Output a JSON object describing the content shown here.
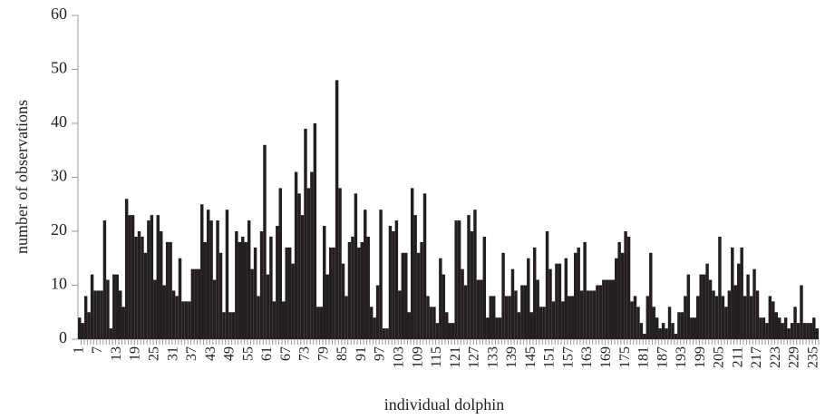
{
  "chart_data": {
    "type": "bar",
    "x_label": "individual dolphin",
    "y_label": "number of observations",
    "categories": [
      "1",
      null,
      null,
      null,
      null,
      null,
      "7",
      null,
      null,
      null,
      null,
      null,
      "13",
      null,
      null,
      null,
      null,
      null,
      "19",
      null,
      null,
      null,
      null,
      null,
      "25",
      null,
      null,
      null,
      null,
      null,
      "31",
      null,
      null,
      null,
      null,
      null,
      "37",
      null,
      null,
      null,
      null,
      null,
      "43",
      null,
      null,
      null,
      null,
      null,
      "49",
      null,
      null,
      null,
      null,
      null,
      "55",
      null,
      null,
      null,
      null,
      null,
      "61",
      null,
      null,
      null,
      null,
      null,
      "67",
      null,
      null,
      null,
      null,
      null,
      "73",
      null,
      null,
      null,
      null,
      null,
      "79",
      null,
      null,
      null,
      null,
      null,
      "85",
      null,
      null,
      null,
      null,
      null,
      "91",
      null,
      null,
      null,
      null,
      null,
      "97",
      null,
      null,
      null,
      null,
      null,
      "103",
      null,
      null,
      null,
      null,
      null,
      "109",
      null,
      null,
      null,
      null,
      null,
      "115",
      null,
      null,
      null,
      null,
      null,
      "121",
      null,
      null,
      null,
      null,
      null,
      "127",
      null,
      null,
      null,
      null,
      null,
      "133",
      null,
      null,
      null,
      null,
      null,
      "139",
      null,
      null,
      null,
      null,
      null,
      "145",
      null,
      null,
      null,
      null,
      null,
      "151",
      null,
      null,
      null,
      null,
      null,
      "157",
      null,
      null,
      null,
      null,
      null,
      "163",
      null,
      null,
      null,
      null,
      null,
      "169",
      null,
      null,
      null,
      null,
      null,
      "175",
      null,
      null,
      null,
      null,
      null,
      "181",
      null,
      null,
      null,
      null,
      null,
      "187",
      null,
      null,
      null,
      null,
      null,
      "193",
      null,
      null,
      null,
      null,
      null,
      "199",
      null,
      null,
      null,
      null,
      null,
      "205",
      null,
      null,
      null,
      null,
      null,
      "211",
      null,
      null,
      null,
      null,
      null,
      "217",
      null,
      null,
      null,
      null,
      null,
      "223",
      null,
      null,
      null,
      null,
      null,
      "229",
      null,
      null,
      null,
      null,
      null,
      "235",
      null
    ],
    "values": [
      4,
      3,
      8,
      5,
      12,
      9,
      9,
      9,
      22,
      11,
      2,
      12,
      12,
      9,
      6,
      26,
      23,
      23,
      19,
      20,
      19,
      16,
      22,
      23,
      11,
      23,
      20,
      10,
      18,
      18,
      9,
      8,
      15,
      7,
      7,
      7,
      13,
      13,
      13,
      25,
      18,
      24,
      22,
      11,
      22,
      16,
      5,
      24,
      5,
      5,
      20,
      18,
      19,
      18,
      22,
      13,
      17,
      8,
      20,
      36,
      12,
      19,
      7,
      21,
      28,
      7,
      17,
      17,
      14,
      31,
      27,
      23,
      39,
      28,
      31,
      40,
      6,
      6,
      21,
      12,
      17,
      17,
      48,
      28,
      14,
      8,
      18,
      19,
      27,
      17,
      18,
      24,
      19,
      6,
      4,
      10,
      24,
      2,
      2,
      21,
      20,
      22,
      9,
      16,
      16,
      5,
      28,
      23,
      16,
      18,
      27,
      8,
      6,
      6,
      3,
      15,
      12,
      5,
      3,
      3,
      22,
      22,
      13,
      10,
      23,
      20,
      24,
      11,
      11,
      19,
      4,
      8,
      8,
      4,
      4,
      16,
      8,
      8,
      13,
      9,
      5,
      10,
      10,
      15,
      5,
      17,
      11,
      6,
      6,
      20,
      13,
      7,
      14,
      14,
      7,
      15,
      8,
      8,
      16,
      17,
      9,
      18,
      9,
      9,
      9,
      10,
      10,
      11,
      11,
      11,
      11,
      15,
      18,
      16,
      20,
      19,
      7,
      8,
      6,
      3,
      1,
      8,
      16,
      6,
      4,
      2,
      3,
      2,
      6,
      3,
      1,
      5,
      5,
      8,
      12,
      4,
      4,
      8,
      12,
      12,
      14,
      11,
      9,
      8,
      19,
      8,
      6,
      9,
      17,
      10,
      14,
      17,
      8,
      12,
      8,
      13,
      9,
      4,
      4,
      3,
      8,
      7,
      5,
      4,
      3,
      4,
      2,
      3,
      6,
      3,
      10,
      3,
      3,
      3,
      4,
      2
    ],
    "color": "#231f20",
    "ylim": [
      0,
      60
    ],
    "yticks": [
      0,
      10,
      20,
      30,
      40,
      50,
      60
    ]
  }
}
